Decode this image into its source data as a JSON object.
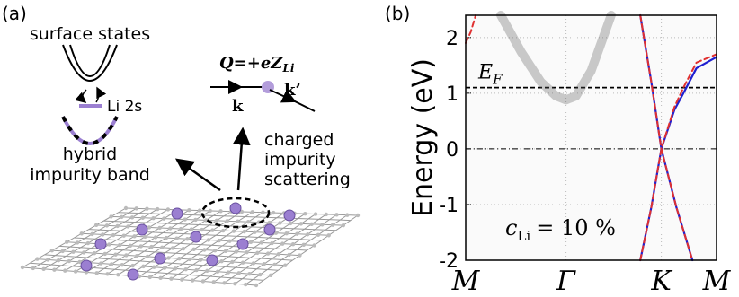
{
  "panel_a": {
    "label": "(a)",
    "surface_states": "surface states",
    "li_level": "Li 2s",
    "hybrid_line1": "hybrid",
    "hybrid_line2": "impurity band",
    "charge": {
      "text": "Q=+eZ",
      "subscript": "Li"
    },
    "k_in": "k",
    "k_out": "k’",
    "scattering_line1": "charged",
    "scattering_line2": "impurity",
    "scattering_line3": "scattering"
  },
  "chart_data": {
    "type": "line",
    "panel_label": "(b)",
    "ylabel": "Energy (eV)",
    "xlim": [
      0,
      2.5
    ],
    "xticks": [
      {
        "value": 0,
        "label": "M"
      },
      {
        "value": 1,
        "label": "Γ"
      },
      {
        "value": 1.95,
        "label": "K"
      },
      {
        "value": 2.5,
        "label": "M"
      }
    ],
    "ylim": [
      -2,
      2.4
    ],
    "yticks": [
      -2,
      -1,
      0,
      1,
      2
    ],
    "grid": true,
    "fermi_level": 1.1,
    "fermi_label": {
      "text": "E",
      "subscript": "F"
    },
    "annotation": {
      "text": "c",
      "subscript": "Li",
      "suffix": "= 10 %"
    },
    "series": [
      {
        "color": "#555555",
        "style": "shade",
        "x": [
          0.35,
          0.55,
          0.75,
          0.9,
          1.0,
          1.1,
          1.25,
          1.45
        ],
        "values": [
          2.4,
          1.75,
          1.2,
          0.95,
          0.88,
          0.95,
          1.4,
          2.4
        ]
      },
      {
        "color": "#1f1fd0",
        "style": "solid",
        "x": [
          1.74,
          1.85,
          1.95,
          2.1,
          2.26
        ],
        "values": [
          2.4,
          1.2,
          0,
          -1.05,
          -2
        ]
      },
      {
        "color": "#1f1fd0",
        "style": "solid",
        "x": [
          1.74,
          1.85,
          1.95,
          2.08,
          2.17,
          2.3,
          2.5
        ],
        "values": [
          -2,
          -1.05,
          0,
          0.7,
          1.0,
          1.45,
          1.65
        ]
      },
      {
        "color": "#e03030",
        "style": "dash",
        "x": [
          1.74,
          1.85,
          1.95,
          2.1,
          2.26
        ],
        "values": [
          2.4,
          1.2,
          0,
          -1.05,
          -2
        ]
      },
      {
        "color": "#e03030",
        "style": "dash",
        "x": [
          1.74,
          1.85,
          1.95,
          2.08,
          2.17,
          2.3,
          2.5
        ],
        "values": [
          -2,
          -1.05,
          0,
          0.75,
          1.1,
          1.55,
          1.7
        ]
      },
      {
        "color": "#e03030",
        "style": "dash",
        "x": [
          0,
          0.05,
          0.1
        ],
        "values": [
          1.9,
          2.1,
          2.4
        ]
      }
    ]
  }
}
